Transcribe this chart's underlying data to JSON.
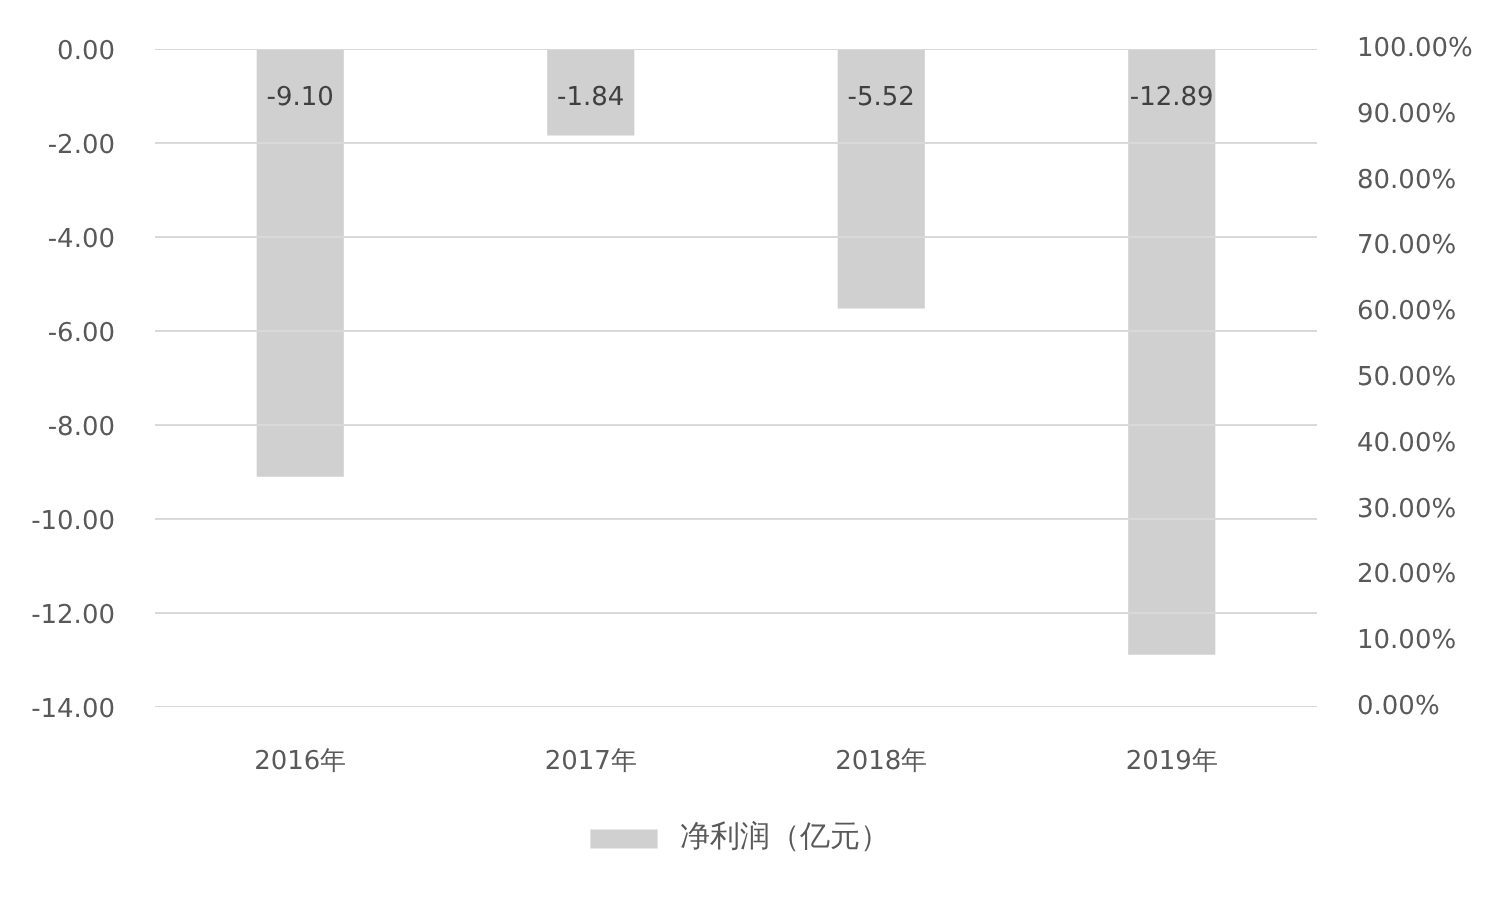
{
  "chart_data": {
    "type": "bar",
    "categories": [
      "2016年",
      "2017年",
      "2018年",
      "2019年"
    ],
    "series": [
      {
        "name": "净利润（亿元）",
        "color": "#d0d0d0",
        "values": [
          -9.1,
          -1.84,
          -5.52,
          -12.89
        ],
        "value_labels": [
          "-9.10",
          "-1.84",
          "-5.52",
          "-12.89"
        ]
      }
    ],
    "ylim": [
      -14,
      0
    ],
    "yticks": [
      {
        "value": -14,
        "label": "-14.00"
      },
      {
        "value": -12,
        "label": "-12.00"
      },
      {
        "value": -10,
        "label": "-10.00"
      },
      {
        "value": -8,
        "label": "-8.00"
      },
      {
        "value": -6,
        "label": "-6.00"
      },
      {
        "value": -4,
        "label": "-4.00"
      },
      {
        "value": -2,
        "label": "-2.00"
      },
      {
        "value": 0,
        "label": "0.00"
      }
    ],
    "y2lim": [
      0,
      100
    ],
    "y2ticks": [
      {
        "value": 0,
        "label": "0.00%"
      },
      {
        "value": 10,
        "label": "10.00%"
      },
      {
        "value": 20,
        "label": "20.00%"
      },
      {
        "value": 30,
        "label": "30.00%"
      },
      {
        "value": 40,
        "label": "40.00%"
      },
      {
        "value": 50,
        "label": "50.00%"
      },
      {
        "value": 60,
        "label": "60.00%"
      },
      {
        "value": 70,
        "label": "70.00%"
      },
      {
        "value": 80,
        "label": "80.00%"
      },
      {
        "value": 90,
        "label": "90.00%"
      },
      {
        "value": 100,
        "label": "100.00%"
      }
    ],
    "grid": "y",
    "legend": "bottom"
  }
}
